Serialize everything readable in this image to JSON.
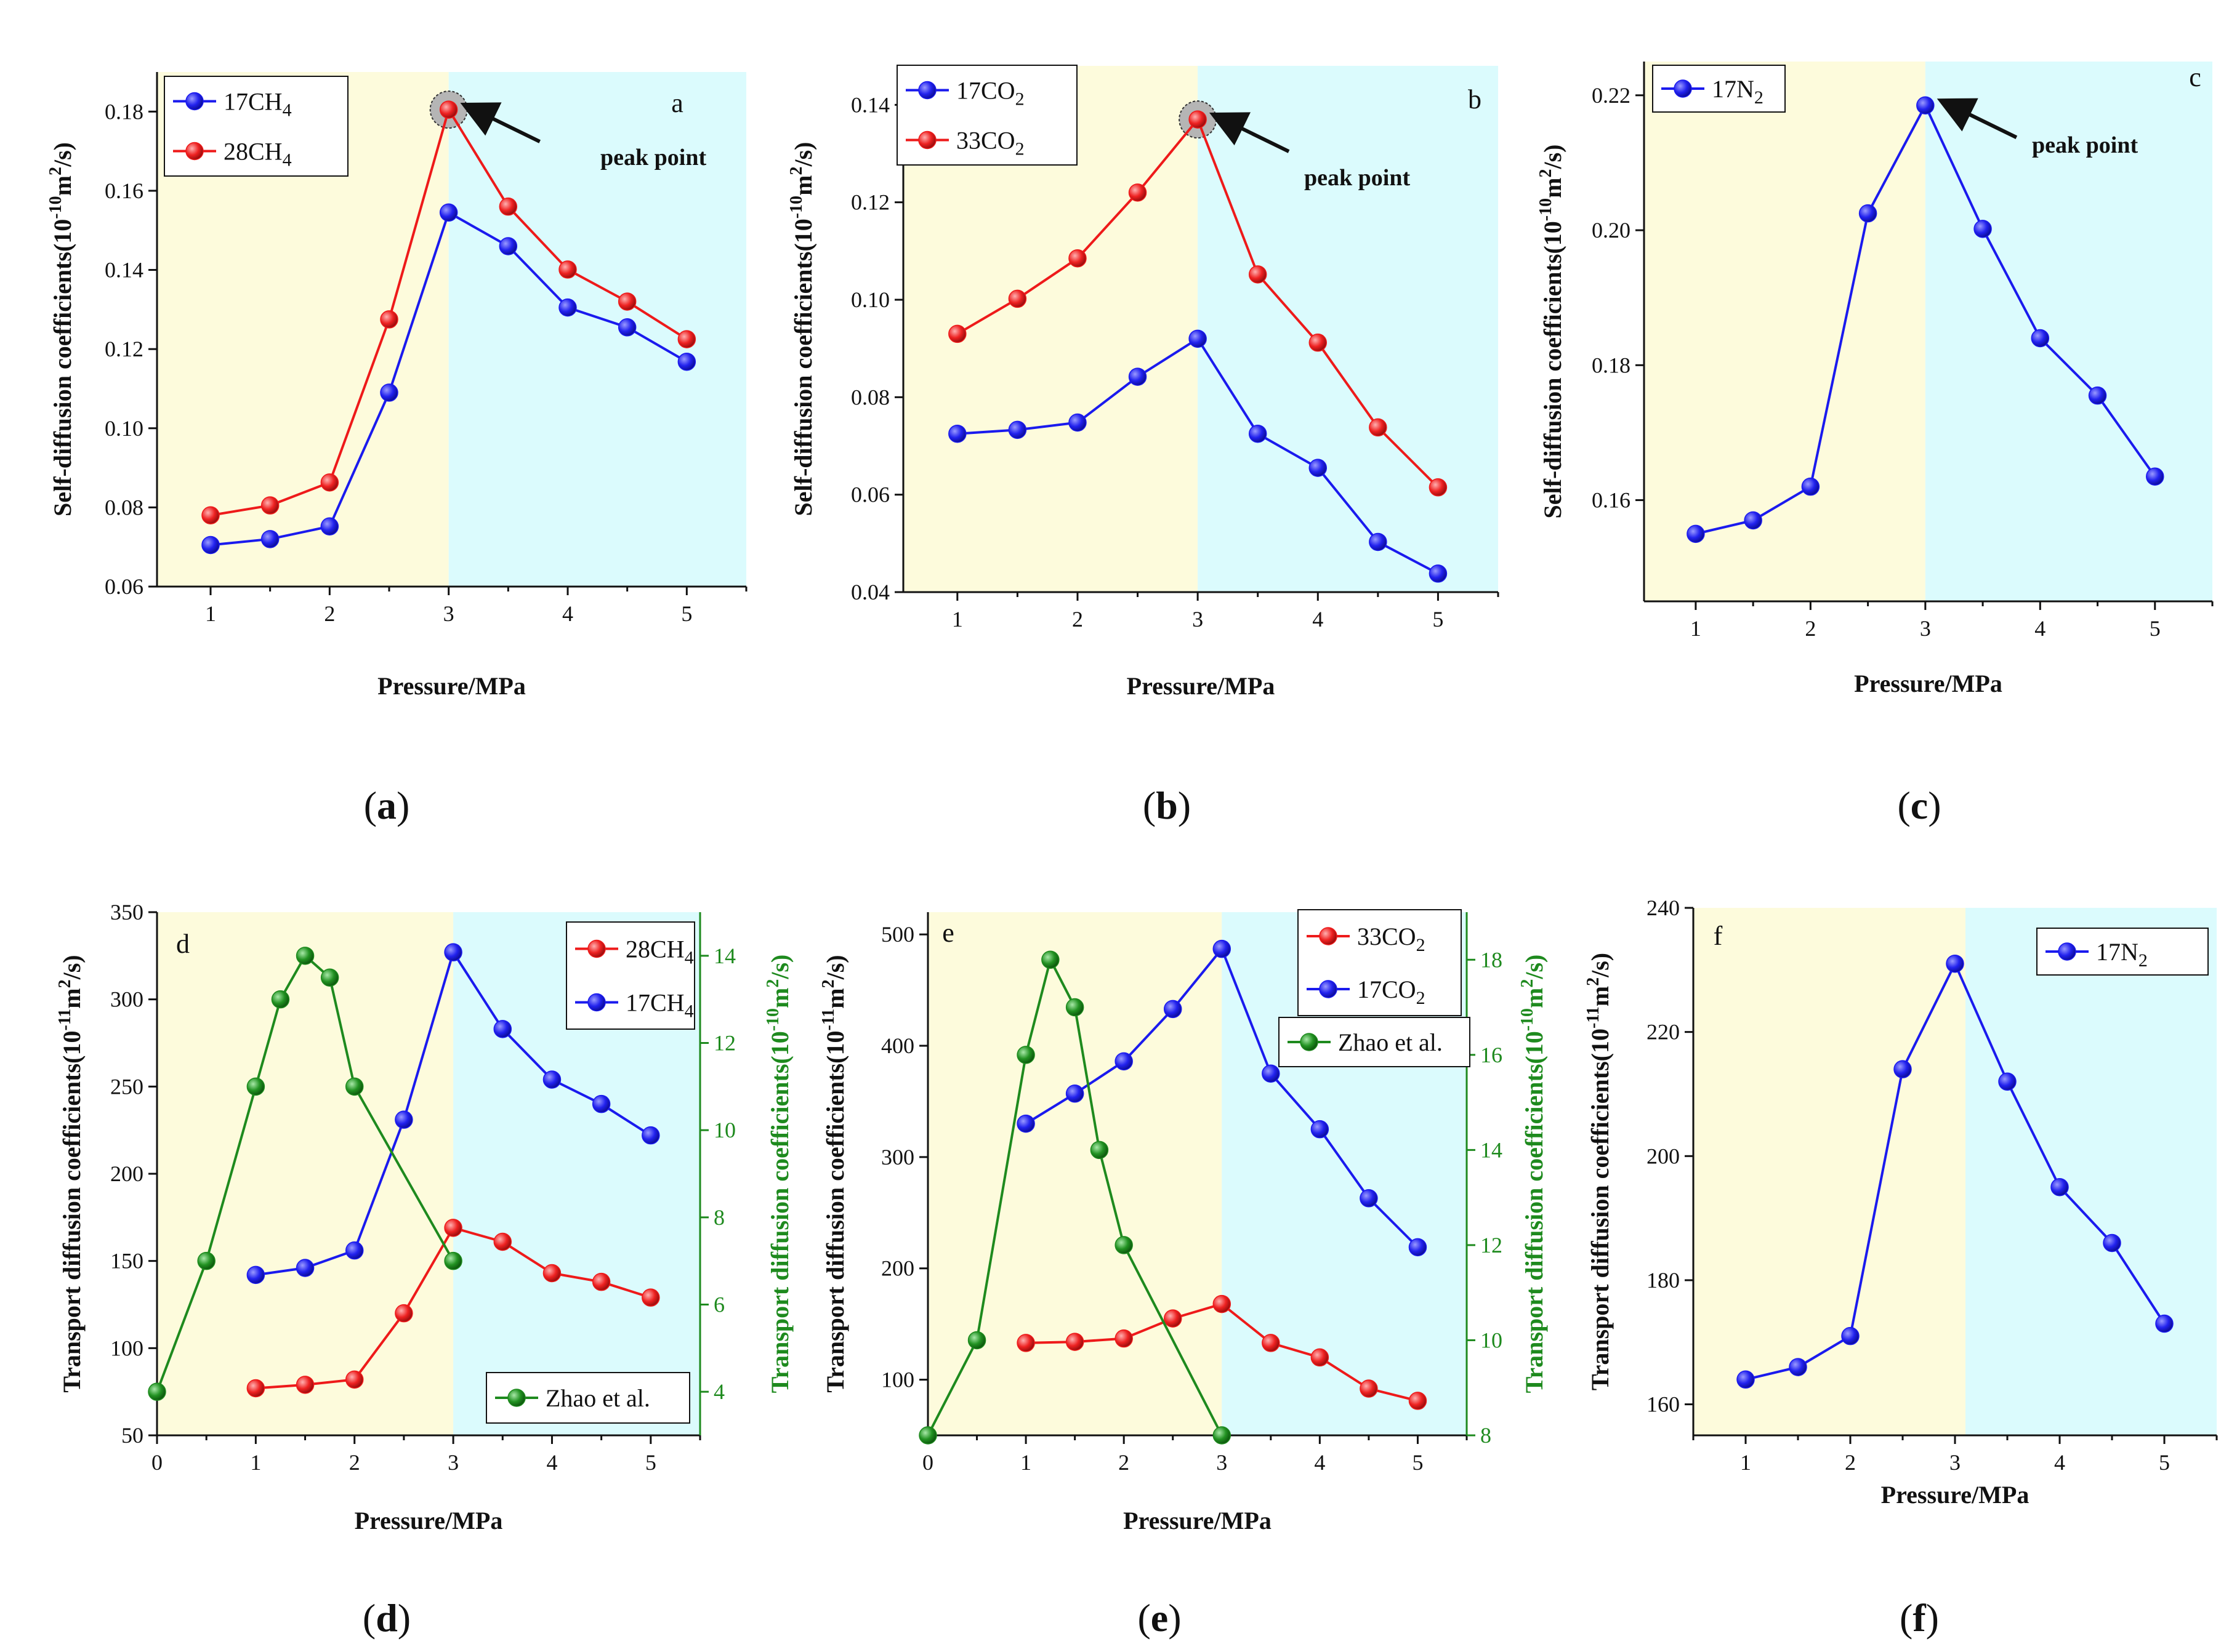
{
  "colors": {
    "pre_peak_bg": "#fdfbdc",
    "post_peak_bg": "#dbfbfd",
    "blue": "#1a1aee",
    "red": "#ee1a1a",
    "green": "#1e8a1e",
    "axis": "#111111"
  },
  "chart_data": [
    {
      "id": "a",
      "type": "line",
      "panel_letter": "a",
      "caption": {
        "open": "(",
        "letter": "a",
        "close": ")"
      },
      "xlabel": "Pressure/MPa",
      "ylabel": {
        "main": "Self-diffusion coefficients(10",
        "exp": "-10",
        "mid": "m",
        "sq": "2",
        "end": "/s)"
      },
      "xlim": [
        0.55,
        5.5
      ],
      "ylim": [
        0.06,
        0.19
      ],
      "xticks": [
        "1",
        "2",
        "3",
        "4",
        "5"
      ],
      "yticks": [
        "0.06",
        "0.08",
        "0.10",
        "0.12",
        "0.14",
        "0.16",
        "0.18"
      ],
      "regions": [
        {
          "from": 0.55,
          "to": 3,
          "color": "pre_peak_bg"
        },
        {
          "from": 3,
          "to": 5.5,
          "color": "post_peak_bg"
        }
      ],
      "series": [
        {
          "name": "17CH4",
          "label_base": "17CH",
          "label_sub": "4",
          "color": "blue",
          "axis": "left",
          "x": [
            1,
            1.5,
            2,
            2.5,
            3,
            3.5,
            4,
            4.5,
            5
          ],
          "y": [
            0.0705,
            0.072,
            0.0752,
            0.109,
            0.1545,
            0.146,
            0.1305,
            0.1255,
            0.1168
          ]
        },
        {
          "name": "28CH4",
          "label_base": "28CH",
          "label_sub": "4",
          "color": "red",
          "axis": "left",
          "x": [
            1,
            1.5,
            2,
            2.5,
            3,
            3.5,
            4,
            4.5,
            5
          ],
          "y": [
            0.078,
            0.0805,
            0.0863,
            0.1275,
            0.1805,
            0.156,
            0.1401,
            0.132,
            0.1225
          ]
        }
      ],
      "peak": {
        "x": 3,
        "y": 0.1805,
        "circle": true,
        "label": "peak point"
      }
    },
    {
      "id": "b",
      "type": "line",
      "panel_letter": "b",
      "caption": {
        "open": "(",
        "letter": "b",
        "close": ")"
      },
      "xlabel": "Pressure/MPa",
      "ylabel": {
        "main": "Self-diffusion coefficients(10",
        "exp": "-10",
        "mid": "m",
        "sq": "2",
        "end": "/s)"
      },
      "xlim": [
        0.55,
        5.5
      ],
      "ylim": [
        0.04,
        0.148
      ],
      "xticks": [
        "1",
        "2",
        "3",
        "4",
        "5"
      ],
      "yticks": [
        "0.04",
        "0.06",
        "0.08",
        "0.10",
        "0.12",
        "0.14"
      ],
      "regions": [
        {
          "from": 0.55,
          "to": 3,
          "color": "pre_peak_bg"
        },
        {
          "from": 3,
          "to": 5.5,
          "color": "post_peak_bg"
        }
      ],
      "series": [
        {
          "name": "17CO2",
          "label_base": "17CO",
          "label_sub": "2",
          "color": "blue",
          "axis": "left",
          "x": [
            1,
            1.5,
            2,
            2.5,
            3,
            3.5,
            4,
            4.5,
            5
          ],
          "y": [
            0.0725,
            0.0733,
            0.0748,
            0.0842,
            0.092,
            0.0725,
            0.0655,
            0.0503,
            0.0438
          ]
        },
        {
          "name": "33CO2",
          "label_base": "33CO",
          "label_sub": "2",
          "color": "red",
          "axis": "left",
          "x": [
            1,
            1.5,
            2,
            2.5,
            3,
            3.5,
            4,
            4.5,
            5
          ],
          "y": [
            0.093,
            0.1002,
            0.1085,
            0.122,
            0.137,
            0.1052,
            0.0912,
            0.0738,
            0.0615
          ]
        }
      ],
      "peak": {
        "x": 3,
        "y": 0.137,
        "circle": true,
        "label": "peak point"
      }
    },
    {
      "id": "c",
      "type": "line",
      "panel_letter": "c",
      "caption": {
        "open": "(",
        "letter": "c",
        "close": ")"
      },
      "xlabel": "Pressure/MPa",
      "ylabel": {
        "main": "Self-diffusion coefficients(10",
        "exp": "-10",
        "mid": "m",
        "sq": "2",
        "end": "/s)"
      },
      "xlim": [
        0.55,
        5.5
      ],
      "ylim": [
        0.145,
        0.225
      ],
      "xticks": [
        "1",
        "2",
        "3",
        "4",
        "5"
      ],
      "yticks": [
        "0.16",
        "0.18",
        "0.20",
        "0.22"
      ],
      "regions": [
        {
          "from": 0.55,
          "to": 3,
          "color": "pre_peak_bg"
        },
        {
          "from": 3,
          "to": 5.5,
          "color": "post_peak_bg"
        }
      ],
      "series": [
        {
          "name": "17N2",
          "label_base": "17N",
          "label_sub": "2",
          "color": "blue",
          "axis": "left",
          "x": [
            1,
            1.5,
            2,
            2.5,
            3,
            3.5,
            4,
            4.5,
            5
          ],
          "y": [
            0.155,
            0.157,
            0.162,
            0.2025,
            0.2185,
            0.2002,
            0.184,
            0.1755,
            0.1635
          ]
        }
      ],
      "peak": {
        "x": 3,
        "y": 0.2185,
        "circle": false,
        "label": "peak point"
      }
    },
    {
      "id": "d",
      "type": "line",
      "panel_letter": "d",
      "caption": {
        "open": "(",
        "letter": "d",
        "close": ")"
      },
      "xlabel": "Pressure/MPa",
      "ylabel": {
        "main": "Transport diffusion coefficients(10",
        "exp": "-11",
        "mid": "m",
        "sq": "2",
        "end": "/s)"
      },
      "y2label": {
        "main": "Transport diffusion coefficients(10",
        "exp": "-10",
        "mid": "m",
        "sq": "2",
        "end": "/s)"
      },
      "xlim": [
        0,
        5.5
      ],
      "ylim": [
        50,
        350
      ],
      "y2lim": [
        3,
        15
      ],
      "xticks": [
        "0",
        "1",
        "2",
        "3",
        "4",
        "5"
      ],
      "yticks": [
        "50",
        "100",
        "150",
        "200",
        "250",
        "300",
        "350"
      ],
      "y2ticks": [
        "4",
        "6",
        "8",
        "10",
        "12",
        "14"
      ],
      "regions": [
        {
          "from": 0,
          "to": 3,
          "color": "pre_peak_bg"
        },
        {
          "from": 3,
          "to": 5.5,
          "color": "post_peak_bg"
        }
      ],
      "series": [
        {
          "name": "28CH4",
          "label_base": "28CH",
          "label_sub": "4",
          "color": "red",
          "axis": "left",
          "x": [
            1,
            1.5,
            2,
            2.5,
            3,
            3.5,
            4,
            4.5,
            5
          ],
          "y": [
            77,
            79,
            82,
            120,
            169,
            161,
            143,
            138,
            129
          ]
        },
        {
          "name": "17CH4",
          "label_base": "17CH",
          "label_sub": "4",
          "color": "blue",
          "axis": "left",
          "x": [
            1,
            1.5,
            2,
            2.5,
            3,
            3.5,
            4,
            4.5,
            5
          ],
          "y": [
            142,
            146,
            156,
            231,
            327,
            283,
            254,
            240,
            222
          ]
        },
        {
          "name": "Zhao et al.",
          "label_base": "Zhao et al.",
          "label_sub": "",
          "color": "green",
          "axis": "right",
          "x": [
            0,
            0.5,
            1,
            1.25,
            1.5,
            1.75,
            2,
            3
          ],
          "y": [
            4,
            7,
            11,
            13,
            14,
            13.5,
            11,
            7
          ]
        }
      ]
    },
    {
      "id": "e",
      "type": "line",
      "panel_letter": "e",
      "caption": {
        "open": "(",
        "letter": "e",
        "close": ")"
      },
      "xlabel": "Pressure/MPa",
      "ylabel": {
        "main": "Transport diffusion coefficients(10",
        "exp": "-11",
        "mid": "m",
        "sq": "2",
        "end": "/s)"
      },
      "y2label": {
        "main": "Transport diffusion coefficients(10",
        "exp": "-10",
        "mid": "m",
        "sq": "2",
        "end": "/s)"
      },
      "xlim": [
        0,
        5.5
      ],
      "ylim": [
        50,
        520
      ],
      "y2lim": [
        8,
        19
      ],
      "xticks": [
        "0",
        "1",
        "2",
        "3",
        "4",
        "5"
      ],
      "yticks": [
        "100",
        "200",
        "300",
        "400",
        "500"
      ],
      "y2ticks": [
        "8",
        "10",
        "12",
        "14",
        "16",
        "18"
      ],
      "regions": [
        {
          "from": 0,
          "to": 3,
          "color": "pre_peak_bg"
        },
        {
          "from": 3,
          "to": 5.5,
          "color": "post_peak_bg"
        }
      ],
      "series": [
        {
          "name": "33CO2",
          "label_base": "33CO",
          "label_sub": "2",
          "color": "red",
          "axis": "left",
          "x": [
            1,
            1.5,
            2,
            2.5,
            3,
            3.5,
            4,
            4.5,
            5
          ],
          "y": [
            133,
            134,
            137,
            155,
            168,
            133,
            120,
            92,
            81
          ]
        },
        {
          "name": "17CO2",
          "label_base": "17CO",
          "label_sub": "2",
          "color": "blue",
          "axis": "left",
          "x": [
            1,
            1.5,
            2,
            2.5,
            3,
            3.5,
            4,
            4.5,
            5
          ],
          "y": [
            330,
            357,
            386,
            433,
            487,
            375,
            325,
            263,
            219
          ]
        },
        {
          "name": "Zhao et al.",
          "label_base": "Zhao et al.",
          "label_sub": "",
          "color": "green",
          "axis": "right",
          "x": [
            0,
            0.5,
            1,
            1.25,
            1.5,
            1.75,
            2,
            3
          ],
          "y": [
            8,
            10,
            16,
            18,
            17,
            14,
            12,
            8
          ]
        }
      ]
    },
    {
      "id": "f",
      "type": "line",
      "panel_letter": "f",
      "caption": {
        "open": "(",
        "letter": "f",
        "close": ")"
      },
      "xlabel": "Pressure/MPa",
      "ylabel": {
        "main": "Transport diffusion coefficients(10",
        "exp": "-11",
        "mid": "m",
        "sq": "2",
        "end": "/s)"
      },
      "xlim": [
        0.5,
        5.5
      ],
      "ylim": [
        155,
        240
      ],
      "xticks": [
        "1",
        "2",
        "3",
        "4",
        "5"
      ],
      "yticks": [
        "160",
        "180",
        "200",
        "220",
        "240"
      ],
      "regions": [
        {
          "from": 0.5,
          "to": 3.1,
          "color": "pre_peak_bg"
        },
        {
          "from": 3.1,
          "to": 5.5,
          "color": "post_peak_bg"
        }
      ],
      "series": [
        {
          "name": "17N2",
          "label_base": "17N",
          "label_sub": "2",
          "color": "blue",
          "axis": "left",
          "x": [
            1,
            1.5,
            2,
            2.5,
            3,
            3.5,
            4,
            4.5,
            5
          ],
          "y": [
            164,
            166,
            171,
            214,
            231,
            212,
            195,
            186,
            173
          ]
        }
      ]
    }
  ]
}
